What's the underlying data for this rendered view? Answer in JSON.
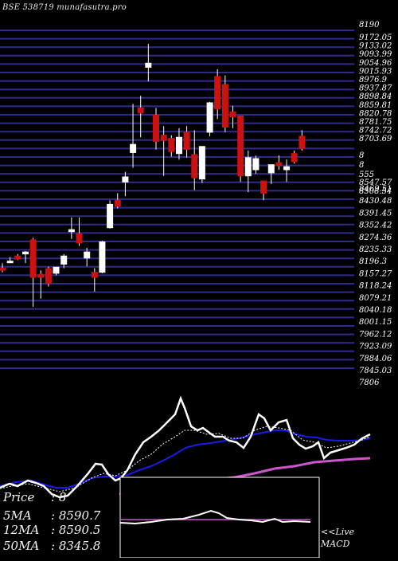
{
  "header": {
    "title": "BSE 538719 munafasutra.pro"
  },
  "legend": {
    "price_key": "Price",
    "price_val": ": 8",
    "ma5_key": "5MA",
    "ma5_val": ": 8590.7",
    "ma12_key": "12MA",
    "ma12_val": ": 8590.5",
    "ma50_key": "50MA",
    "ma50_val": ": 8345.8"
  },
  "macd": {
    "live_label": "<<Live",
    "macd_label": "MACD"
  },
  "colors": {
    "background": "#000000",
    "grid": "#2c2c8c",
    "up": "#ffffff",
    "down": "#cc1111",
    "price_line": "#ffffff",
    "ma_short": "#1a1aee",
    "ma_long": "#cc55cc",
    "dotted": "#ffffff"
  },
  "chart_data": {
    "type": "candlestick",
    "ylim": [
      7506,
      9190
    ],
    "price_ticks": [
      "9172.05",
      "9133.02",
      "9093.99",
      "9054.96",
      "9015.93",
      "8976.9",
      "8937.87",
      "8898.84",
      "8859.81",
      "8820.78",
      "8781.75",
      "8742.72",
      "8703.69",
      "8469.51",
      "8430.48",
      "8391.45",
      "8352.42",
      "8274.36",
      "8235.33",
      "8196.3",
      "8157.27",
      "8118.24",
      "8079.21",
      "8040.18",
      "8001.15",
      "7962.12",
      "7923.09",
      "7884.06",
      "7845.03",
      "7806"
    ],
    "y_cluster_labels": [
      "8190",
      "8",
      "8",
      "555",
      "8547.57",
      "8508.54"
    ],
    "candles": [
      {
        "o": 8010,
        "h": 8035,
        "l": 7990,
        "c": 8000,
        "up": false
      },
      {
        "o": 8040,
        "h": 8065,
        "l": 8035,
        "c": 8045,
        "up": true
      },
      {
        "o": 8070,
        "h": 8080,
        "l": 8050,
        "c": 8055,
        "up": false
      },
      {
        "o": 8080,
        "h": 8095,
        "l": 8035,
        "c": 8090,
        "up": true
      },
      {
        "o": 8150,
        "h": 8160,
        "l": 7820,
        "c": 7965,
        "up": false
      },
      {
        "o": 7980,
        "h": 8000,
        "l": 7860,
        "c": 7965,
        "up": false
      },
      {
        "o": 8008,
        "h": 8018,
        "l": 7920,
        "c": 7935,
        "up": false
      },
      {
        "o": 7985,
        "h": 8015,
        "l": 7975,
        "c": 8015,
        "up": true
      },
      {
        "o": 8030,
        "h": 8080,
        "l": 8010,
        "c": 8070,
        "up": true
      },
      {
        "o": 8200,
        "h": 8260,
        "l": 8155,
        "c": 8190,
        "up": true
      },
      {
        "o": 8180,
        "h": 8260,
        "l": 8120,
        "c": 8135,
        "up": false
      },
      {
        "o": 8060,
        "h": 8110,
        "l": 8020,
        "c": 8090,
        "up": true
      },
      {
        "o": 7990,
        "h": 8010,
        "l": 7895,
        "c": 7965,
        "up": false
      },
      {
        "o": 7990,
        "h": 8145,
        "l": 7985,
        "c": 8140,
        "up": true
      },
      {
        "o": 8325,
        "h": 8345,
        "l": 8205,
        "c": 8210,
        "up": true
      },
      {
        "o": 8345,
        "h": 8380,
        "l": 8305,
        "c": 8315,
        "up": false
      },
      {
        "o": 8460,
        "h": 8485,
        "l": 8365,
        "c": 8435,
        "up": true
      },
      {
        "o": 8620,
        "h": 8820,
        "l": 8505,
        "c": 8580,
        "up": true
      },
      {
        "o": 8800,
        "h": 8860,
        "l": 8655,
        "c": 8775,
        "up": false
      },
      {
        "o": 9000,
        "h": 9115,
        "l": 8930,
        "c": 9020,
        "up": true
      },
      {
        "o": 8765,
        "h": 8800,
        "l": 8595,
        "c": 8635,
        "up": false
      },
      {
        "o": 8665,
        "h": 8710,
        "l": 8465,
        "c": 8640,
        "up": false
      },
      {
        "o": 8650,
        "h": 8665,
        "l": 8560,
        "c": 8585,
        "up": false
      },
      {
        "o": 8575,
        "h": 8700,
        "l": 8545,
        "c": 8655,
        "up": true
      },
      {
        "o": 8680,
        "h": 8710,
        "l": 8555,
        "c": 8595,
        "up": false
      },
      {
        "o": 8570,
        "h": 8690,
        "l": 8395,
        "c": 8455,
        "up": false
      },
      {
        "o": 8450,
        "h": 8610,
        "l": 8430,
        "c": 8610,
        "up": true
      },
      {
        "o": 8680,
        "h": 8830,
        "l": 8660,
        "c": 8825,
        "up": true
      },
      {
        "o": 8955,
        "h": 8990,
        "l": 8745,
        "c": 8795,
        "up": false
      },
      {
        "o": 8915,
        "h": 8960,
        "l": 8680,
        "c": 8705,
        "up": false
      },
      {
        "o": 8780,
        "h": 8810,
        "l": 8700,
        "c": 8755,
        "up": false
      },
      {
        "o": 8760,
        "h": 8760,
        "l": 8435,
        "c": 8465,
        "up": false
      },
      {
        "o": 8465,
        "h": 8590,
        "l": 8385,
        "c": 8555,
        "up": true
      },
      {
        "o": 8495,
        "h": 8565,
        "l": 8475,
        "c": 8550,
        "up": true
      },
      {
        "o": 8440,
        "h": 8440,
        "l": 8345,
        "c": 8380,
        "up": false
      },
      {
        "o": 8480,
        "h": 8515,
        "l": 8425,
        "c": 8520,
        "up": true
      },
      {
        "o": 8530,
        "h": 8565,
        "l": 8495,
        "c": 8515,
        "up": false
      },
      {
        "o": 8510,
        "h": 8545,
        "l": 8435,
        "c": 8495,
        "up": true
      },
      {
        "o": 8535,
        "h": 8590,
        "l": 8525,
        "c": 8575,
        "up": false
      },
      {
        "o": 8600,
        "h": 8690,
        "l": 8590,
        "c": 8660,
        "up": false
      }
    ]
  }
}
